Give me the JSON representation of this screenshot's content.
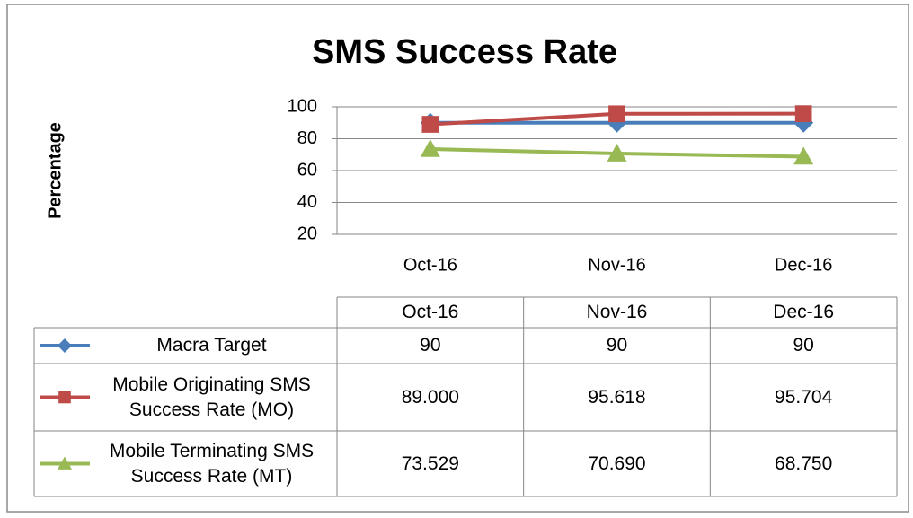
{
  "chart_data": {
    "type": "line",
    "title": "SMS Success Rate",
    "y_label": "Percentage",
    "categories": [
      "Oct-16",
      "Nov-16",
      "Dec-16"
    ],
    "series": [
      {
        "name": "Macra Target",
        "color": "#4a7ebb",
        "marker": "diamond",
        "values": [
          90,
          90,
          90
        ]
      },
      {
        "name": "Mobile Originating SMS Success Rate (MO)",
        "color": "#be4b48",
        "marker": "square",
        "values": [
          89,
          95.618,
          95.704
        ],
        "value_labels": [
          "89.000",
          "95.618",
          "95.704"
        ]
      },
      {
        "name": "Mobile Terminating SMS Success Rate (MT)",
        "color": "#98b954",
        "marker": "triangle",
        "values": [
          73.529,
          70.69,
          68.75
        ],
        "value_labels": [
          "73.529",
          "70.690",
          "68.750"
        ]
      }
    ],
    "ylim": [
      20,
      100
    ],
    "yticks": [
      20,
      40,
      60,
      80,
      100
    ],
    "grid": true
  }
}
